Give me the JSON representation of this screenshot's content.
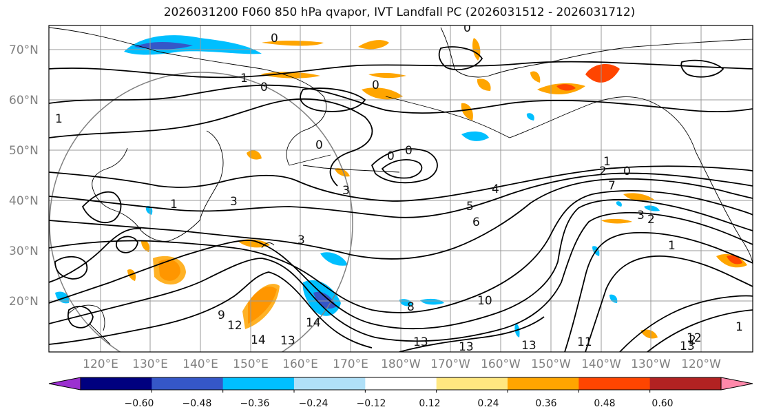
{
  "title": "2026031200 F060 850 hPa qvapor, IVT Landfall PC (2026031512 - 2026031712)",
  "map": {
    "lat_labels": [
      "70°N",
      "60°N",
      "50°N",
      "40°N",
      "30°N",
      "20°N"
    ],
    "lon_labels": [
      "120°E",
      "130°E",
      "140°E",
      "150°E",
      "160°E",
      "170°E",
      "180°W",
      "170°W",
      "160°W",
      "150°W",
      "140°W",
      "130°W",
      "120°W"
    ],
    "gridline_color": "#999999",
    "contour_labels": [
      "0",
      "0",
      "0",
      "0",
      "0",
      "0",
      "0",
      "0",
      "1",
      "1",
      "1",
      "1",
      "1",
      "1",
      "2",
      "2",
      "2",
      "3",
      "3",
      "3",
      "3",
      "4",
      "5",
      "6",
      "7",
      "8",
      "9",
      "10",
      "11",
      "12",
      "12",
      "13",
      "13",
      "13",
      "13",
      "13",
      "14",
      "14"
    ]
  },
  "colorbar": {
    "tick_labels": [
      "−0.60",
      "−0.48",
      "−0.36",
      "−0.24",
      "−0.12",
      "0.12",
      "0.24",
      "0.36",
      "0.48",
      "0.60"
    ],
    "colors": [
      "#9b30d0",
      "#00007f",
      "#3557c8",
      "#00bfff",
      "#b0e0f8",
      "#ffffff",
      "#ffe780",
      "#ffa500",
      "#ff4500",
      "#b22222",
      "#ff88aa"
    ]
  }
}
